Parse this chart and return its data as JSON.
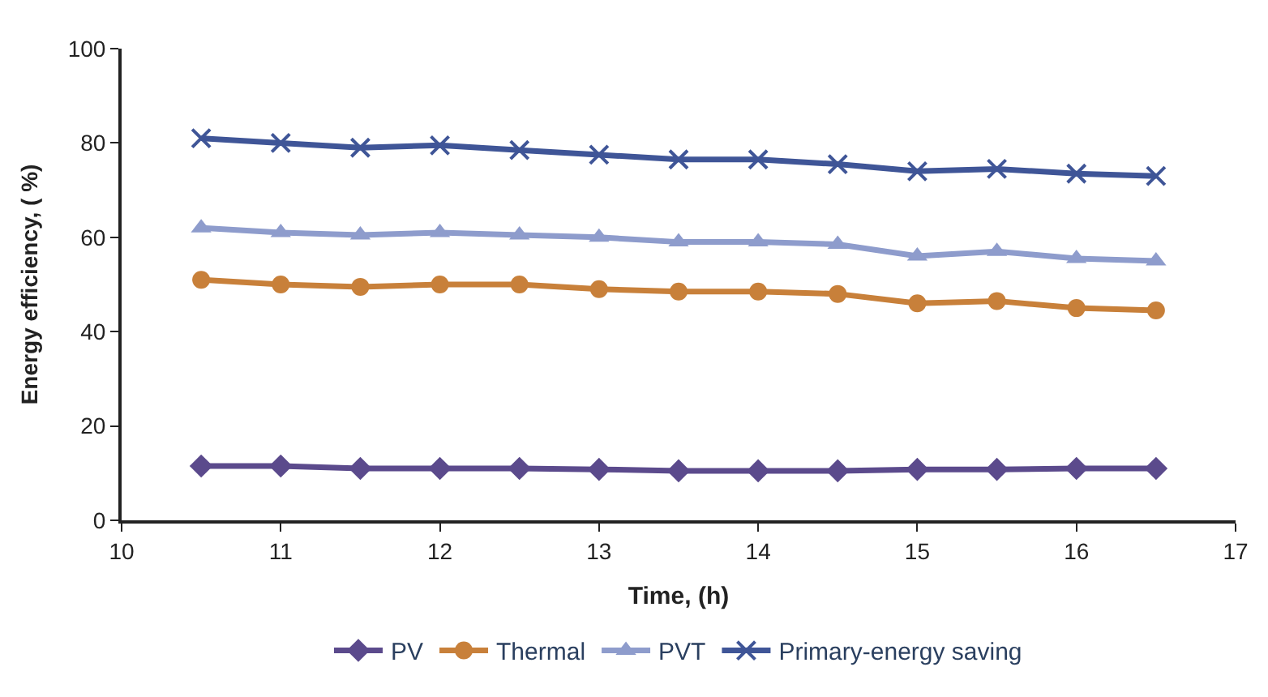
{
  "chart_data": {
    "type": "line",
    "xlabel": "Time, (h)",
    "ylabel": "Energy efficiency, ( %)",
    "x": [
      10.5,
      11,
      11.5,
      12,
      12.5,
      13,
      13.5,
      14,
      14.5,
      15,
      15.5,
      16,
      16.5
    ],
    "xlim": [
      10,
      17
    ],
    "xticks": [
      10,
      11,
      12,
      13,
      14,
      15,
      16,
      17
    ],
    "ylim": [
      0,
      100
    ],
    "yticks": [
      0,
      20,
      40,
      60,
      80,
      100
    ],
    "legend": "bottom",
    "series": [
      {
        "name": "PV",
        "color": "#5b4a8c",
        "marker": "diamond",
        "values": [
          11.5,
          11.5,
          11,
          11,
          11,
          10.8,
          10.5,
          10.5,
          10.5,
          10.8,
          10.8,
          11,
          11
        ]
      },
      {
        "name": "Thermal",
        "color": "#c8803a",
        "marker": "circle",
        "values": [
          51,
          50,
          49.5,
          50,
          50,
          49,
          48.5,
          48.5,
          48,
          46,
          46.5,
          45,
          44.5
        ]
      },
      {
        "name": "PVT",
        "color": "#8e9ccc",
        "marker": "triangle",
        "values": [
          62,
          61,
          60.5,
          61,
          60.5,
          60,
          59,
          59,
          58.5,
          56,
          57,
          55.5,
          55
        ]
      },
      {
        "name": "Primary-energy saving",
        "color": "#3f5597",
        "marker": "cross",
        "values": [
          81,
          80,
          79,
          79.5,
          78.5,
          77.5,
          76.5,
          76.5,
          75.5,
          74,
          74.5,
          73.5,
          73
        ]
      }
    ]
  }
}
